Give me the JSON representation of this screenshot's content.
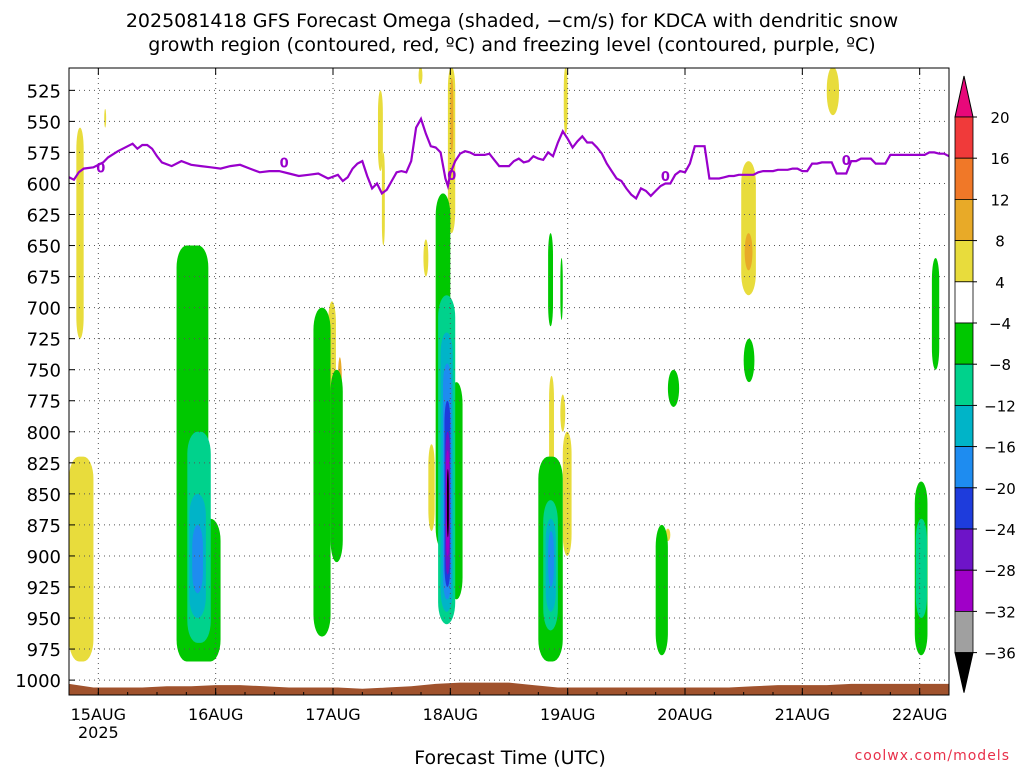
{
  "title_lines": [
    "2025081418 GFS Forecast Omega (shaded, −cm/s) for KDCA with dendritic snow",
    "growth region (contoured, red, ºC) and freezing level (contoured, purple, ºC)"
  ],
  "xlabel": "Forecast Time (UTC)",
  "credit": "coolwx.com/models",
  "chart_data": {
    "type": "heatmap",
    "title": "2025081418 GFS Forecast Omega (shaded, −cm/s) for KDCA with dendritic snow growth region (contoured, red, ºC) and freezing level (contoured, purple, ºC)",
    "xlabel": "Forecast Time (UTC)",
    "ylabel": "",
    "x_unit": "hours since 2025-08-14 18Z",
    "xlim": [
      0,
      180
    ],
    "ylim": [
      1012,
      507
    ],
    "y_ticks": [
      525,
      550,
      575,
      600,
      625,
      650,
      675,
      700,
      725,
      750,
      775,
      800,
      825,
      850,
      875,
      900,
      925,
      950,
      975,
      1000
    ],
    "x_ticks": [
      {
        "t": 6,
        "label": "15AUG"
      },
      {
        "t": 30,
        "label": "16AUG"
      },
      {
        "t": 54,
        "label": "17AUG"
      },
      {
        "t": 78,
        "label": "18AUG"
      },
      {
        "t": 102,
        "label": "19AUG"
      },
      {
        "t": 126,
        "label": "20AUG"
      },
      {
        "t": 150,
        "label": "21AUG"
      },
      {
        "t": 174,
        "label": "22AUG"
      }
    ],
    "x_sublabel": {
      "t": 6,
      "label": "2025"
    },
    "grid": true,
    "colorbar": {
      "labels": [
        "20",
        "16",
        "12",
        "8",
        "4",
        "−4",
        "−8",
        "−12",
        "−16",
        "−20",
        "−24",
        "−28",
        "−32",
        "−36"
      ],
      "colors": [
        "#e8087a",
        "#f03a3a",
        "#f07828",
        "#e8aa28",
        "#e8dc3c",
        "#ffffff",
        "#00c800",
        "#00d28c",
        "#00b4c8",
        "#1e8cf0",
        "#1e3cdc",
        "#6e14c8",
        "#a000c8",
        "#a0a0a0",
        "#000000"
      ]
    },
    "freezing_level": {
      "label": "0",
      "color": "#9900cc",
      "x": [
        0,
        1,
        2,
        3,
        5,
        7,
        8,
        10,
        11,
        12,
        13,
        14,
        15,
        16,
        17,
        18,
        19,
        21,
        23,
        25,
        27,
        29,
        31,
        33,
        35,
        37,
        39,
        41,
        43,
        45,
        47,
        49,
        51,
        53,
        55,
        56,
        57,
        58,
        59,
        60,
        61,
        62,
        63,
        64,
        65,
        66,
        67,
        68,
        69,
        70,
        71,
        72,
        73,
        74,
        75,
        76,
        77,
        77.5,
        78,
        79,
        80,
        81,
        82,
        83,
        84,
        85,
        86,
        87,
        88,
        89,
        90,
        91,
        92,
        93,
        94,
        95,
        96,
        97,
        98,
        99,
        100,
        101,
        102,
        103,
        104,
        105,
        106,
        107,
        108,
        109,
        110,
        111,
        112,
        113,
        114,
        115,
        116,
        117,
        118,
        119,
        120,
        121,
        122,
        123,
        124,
        125,
        126,
        127,
        128,
        129,
        130,
        131,
        132,
        133,
        134,
        135,
        136,
        137,
        138,
        139,
        140,
        141,
        142,
        143,
        144,
        145,
        146,
        147,
        148,
        149,
        150,
        151,
        152,
        153,
        154,
        155,
        156,
        157,
        158,
        159,
        160,
        161,
        162,
        163,
        164,
        165,
        166,
        167,
        168,
        169,
        170,
        171,
        172,
        173,
        174,
        175,
        176,
        177,
        178,
        179,
        180
      ],
      "y": [
        595,
        597,
        591,
        588,
        587,
        583,
        579,
        574,
        572,
        570,
        568,
        572,
        569,
        569,
        572,
        578,
        583,
        586,
        582,
        585,
        586,
        587,
        588,
        586,
        585,
        588,
        591,
        590,
        590,
        592,
        594,
        593,
        592,
        596,
        593,
        598,
        595,
        588,
        584,
        582,
        594,
        604,
        600,
        608,
        605,
        598,
        591,
        590,
        591,
        582,
        555,
        548,
        560,
        570,
        571,
        575,
        596,
        602,
        592,
        582,
        576,
        574,
        575,
        577,
        577,
        577,
        576,
        581,
        586,
        586,
        586,
        582,
        580,
        583,
        582,
        578,
        580,
        581,
        575,
        578,
        567,
        558,
        564,
        571,
        566,
        562,
        567,
        567,
        571,
        576,
        584,
        590,
        596,
        598,
        604,
        609,
        612,
        604,
        606,
        610,
        606,
        602,
        600,
        600,
        593,
        590,
        591,
        584,
        570,
        570,
        570,
        596,
        596,
        596,
        595,
        594,
        594,
        593,
        593,
        593,
        593,
        591,
        590,
        590,
        590,
        589,
        589,
        589,
        588,
        588,
        590,
        590,
        584,
        584,
        583,
        583,
        583,
        592,
        592,
        592,
        582,
        582,
        580,
        580,
        580,
        584,
        584,
        584,
        577,
        577,
        577,
        577,
        577,
        577,
        577,
        577,
        575,
        575,
        576,
        576,
        578,
        590,
        590
      ],
      "contour_labels": [
        {
          "x": 6.5,
          "y": 587
        },
        {
          "x": 44,
          "y": 583
        },
        {
          "x": 78.3,
          "y": 593
        },
        {
          "x": 122,
          "y": 594
        },
        {
          "x": 159,
          "y": 581
        }
      ]
    },
    "omega_regions": [
      {
        "value": 4,
        "t0": 1.5,
        "t1": 3.0,
        "p0": 555,
        "p1": 725
      },
      {
        "value": 4,
        "t0": 7.2,
        "t1": 7.6,
        "p0": 540,
        "p1": 555
      },
      {
        "value": 4,
        "t0": 0,
        "t1": 5.0,
        "p0": 820,
        "p1": 985
      },
      {
        "value": 4,
        "t0": 25.5,
        "t1": 26.0,
        "p0": 775,
        "p1": 800
      },
      {
        "value": 4,
        "t0": 53.0,
        "t1": 54.6,
        "p0": 695,
        "p1": 875
      },
      {
        "value": 4,
        "t0": 50.5,
        "t1": 51.5,
        "p0": 710,
        "p1": 750
      },
      {
        "value": 4,
        "t0": 63.2,
        "t1": 64.2,
        "p0": 525,
        "p1": 590
      },
      {
        "value": 4,
        "t0": 64.0,
        "t1": 64.6,
        "p0": 575,
        "p1": 650
      },
      {
        "value": 4,
        "t0": 72.5,
        "t1": 73.5,
        "p0": 645,
        "p1": 675
      },
      {
        "value": 4,
        "t0": 71.5,
        "t1": 72.3,
        "p0": 506,
        "p1": 520
      },
      {
        "value": 4,
        "t0": 77.5,
        "t1": 79.0,
        "p0": 506,
        "p1": 640
      },
      {
        "value": 4,
        "t0": 73.5,
        "t1": 74.8,
        "p0": 810,
        "p1": 880
      },
      {
        "value": 4,
        "t0": 98.2,
        "t1": 99.2,
        "p0": 755,
        "p1": 850
      },
      {
        "value": 4,
        "t0": 101.0,
        "t1": 102.8,
        "p0": 800,
        "p1": 900
      },
      {
        "value": 4,
        "t0": 101.2,
        "t1": 102.0,
        "p0": 506,
        "p1": 560
      },
      {
        "value": 4,
        "t0": 100.5,
        "t1": 101.5,
        "p0": 770,
        "p1": 800
      },
      {
        "value": 4,
        "t0": 122.0,
        "t1": 123.0,
        "p0": 878,
        "p1": 888
      },
      {
        "value": 4,
        "t0": 137.5,
        "t1": 140.5,
        "p0": 582,
        "p1": 690
      },
      {
        "value": 4,
        "t0": 155.0,
        "t1": 157.5,
        "p0": 506,
        "p1": 545
      },
      {
        "value": 8,
        "t0": 78.0,
        "t1": 78.6,
        "p0": 515,
        "p1": 575
      },
      {
        "value": 8,
        "t0": 55.0,
        "t1": 55.8,
        "p0": 740,
        "p1": 835
      },
      {
        "value": 8,
        "t0": 138.2,
        "t1": 139.8,
        "p0": 640,
        "p1": 670
      },
      {
        "value": -4,
        "t0": 22.0,
        "t1": 28.5,
        "p0": 650,
        "p1": 985
      },
      {
        "value": -4,
        "t0": 24.5,
        "t1": 31.0,
        "p0": 870,
        "p1": 985
      },
      {
        "value": -4,
        "t0": 50.0,
        "t1": 53.5,
        "p0": 700,
        "p1": 965
      },
      {
        "value": -4,
        "t0": 53.5,
        "t1": 56.0,
        "p0": 750,
        "p1": 905
      },
      {
        "value": -4,
        "t0": 75.0,
        "t1": 78.0,
        "p0": 608,
        "p1": 895
      },
      {
        "value": -4,
        "t0": 78.0,
        "t1": 80.5,
        "p0": 760,
        "p1": 935
      },
      {
        "value": -4,
        "t0": 96.0,
        "t1": 101.0,
        "p0": 820,
        "p1": 985
      },
      {
        "value": -4,
        "t0": 98.0,
        "t1": 99.0,
        "p0": 640,
        "p1": 715
      },
      {
        "value": -4,
        "t0": 100.5,
        "t1": 101.0,
        "p0": 660,
        "p1": 710
      },
      {
        "value": -4,
        "t0": 120.0,
        "t1": 122.5,
        "p0": 875,
        "p1": 980
      },
      {
        "value": -4,
        "t0": 122.5,
        "t1": 124.8,
        "p0": 750,
        "p1": 780
      },
      {
        "value": -4,
        "t0": 138.0,
        "t1": 140.2,
        "p0": 725,
        "p1": 760
      },
      {
        "value": -4,
        "t0": 173.0,
        "t1": 175.6,
        "p0": 840,
        "p1": 980
      },
      {
        "value": -4,
        "t0": 176.5,
        "t1": 178.0,
        "p0": 660,
        "p1": 750
      },
      {
        "value": -8,
        "t0": 24.2,
        "t1": 29.0,
        "p0": 800,
        "p1": 970
      },
      {
        "value": -8,
        "t0": 75.5,
        "t1": 79.0,
        "p0": 690,
        "p1": 955
      },
      {
        "value": -8,
        "t0": 97.0,
        "t1": 100.0,
        "p0": 855,
        "p1": 960
      },
      {
        "value": -8,
        "t0": 173.2,
        "t1": 175.5,
        "p0": 870,
        "p1": 950
      },
      {
        "value": -12,
        "t0": 24.6,
        "t1": 28.0,
        "p0": 850,
        "p1": 950
      },
      {
        "value": -12,
        "t0": 76.0,
        "t1": 78.5,
        "p0": 720,
        "p1": 945
      },
      {
        "value": -12,
        "t0": 97.5,
        "t1": 99.6,
        "p0": 870,
        "p1": 945
      },
      {
        "value": -16,
        "t0": 25.2,
        "t1": 27.4,
        "p0": 875,
        "p1": 930
      },
      {
        "value": -16,
        "t0": 76.5,
        "t1": 78.2,
        "p0": 745,
        "p1": 935
      },
      {
        "value": -16,
        "t0": 98.0,
        "t1": 99.2,
        "p0": 880,
        "p1": 925
      },
      {
        "value": -20,
        "t0": 76.8,
        "t1": 78.0,
        "p0": 775,
        "p1": 925
      },
      {
        "value": -24,
        "t0": 77.0,
        "t1": 77.9,
        "p0": 800,
        "p1": 915
      },
      {
        "value": -28,
        "t0": 77.1,
        "t1": 77.8,
        "p0": 815,
        "p1": 900
      },
      {
        "value": -36,
        "t0": 77.3,
        "t1": 77.7,
        "p0": 830,
        "p1": 885
      }
    ],
    "surface": {
      "color": "#a0522d",
      "pressure": [
        1003,
        1006,
        1006,
        1006,
        1005,
        1005,
        1004,
        1004,
        1005,
        1006,
        1006,
        1006,
        1007,
        1006,
        1005,
        1003,
        1002,
        1002,
        1002,
        1004,
        1006,
        1006,
        1006,
        1006,
        1006,
        1006,
        1006,
        1006,
        1005,
        1004,
        1004,
        1004,
        1003,
        1003,
        1003,
        1003,
        1003,
        1003
      ],
      "x_step": 5
    }
  }
}
